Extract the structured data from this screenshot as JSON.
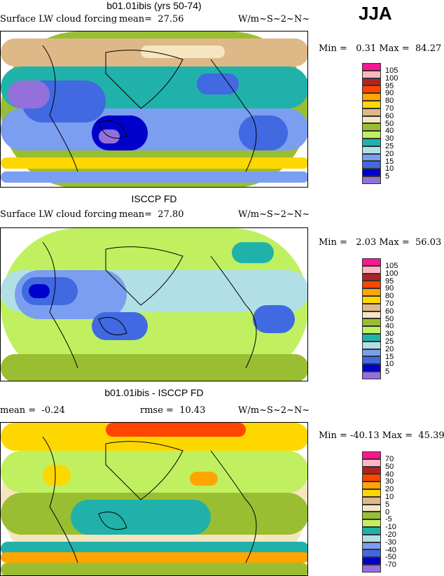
{
  "season": "JJA",
  "panels": [
    {
      "title": "b01.01ibis (yrs 50-74)",
      "left": "Surface LW cloud forcing",
      "mid": "mean=  27.56",
      "units": "W/m~S~2~N~",
      "minmax": "Min =   0.31 Max =  84.27",
      "labels": [
        "105",
        "100",
        "95",
        "90",
        "80",
        "70",
        "60",
        "50",
        "40",
        "30",
        "25",
        "20",
        "15",
        "10",
        "5"
      ]
    },
    {
      "title": "ISCCP FD",
      "left": "Surface LW cloud forcing",
      "mid": "mean=  27.80",
      "units": "W/m~S~2~N~",
      "minmax": "Min =   2.03 Max =  56.03",
      "labels": [
        "105",
        "100",
        "95",
        "90",
        "80",
        "70",
        "60",
        "50",
        "40",
        "30",
        "25",
        "20",
        "15",
        "10",
        "5"
      ]
    },
    {
      "title": "b01.01ibis - ISCCP FD",
      "left": "mean =  -0.24",
      "mid": "rmse =  10.43",
      "units": "W/m~S~2~N~",
      "minmax": "Min = -40.13 Max =  45.39",
      "labels": [
        "70",
        "50",
        "40",
        "30",
        "20",
        "10",
        "5",
        "0",
        "-5",
        "-10",
        "-20",
        "-30",
        "-40",
        "-50",
        "-70"
      ]
    }
  ],
  "colors": [
    "#ff1493",
    "#ffb6c1",
    "#b22222",
    "#ff4500",
    "#ffa500",
    "#ffd700",
    "#deb887",
    "#f5e6c0",
    "#9abe32",
    "#c0f060",
    "#20b2aa",
    "#b0e0e6",
    "#7b9ef0",
    "#4169e1",
    "#0000cd",
    "#9370db"
  ]
}
